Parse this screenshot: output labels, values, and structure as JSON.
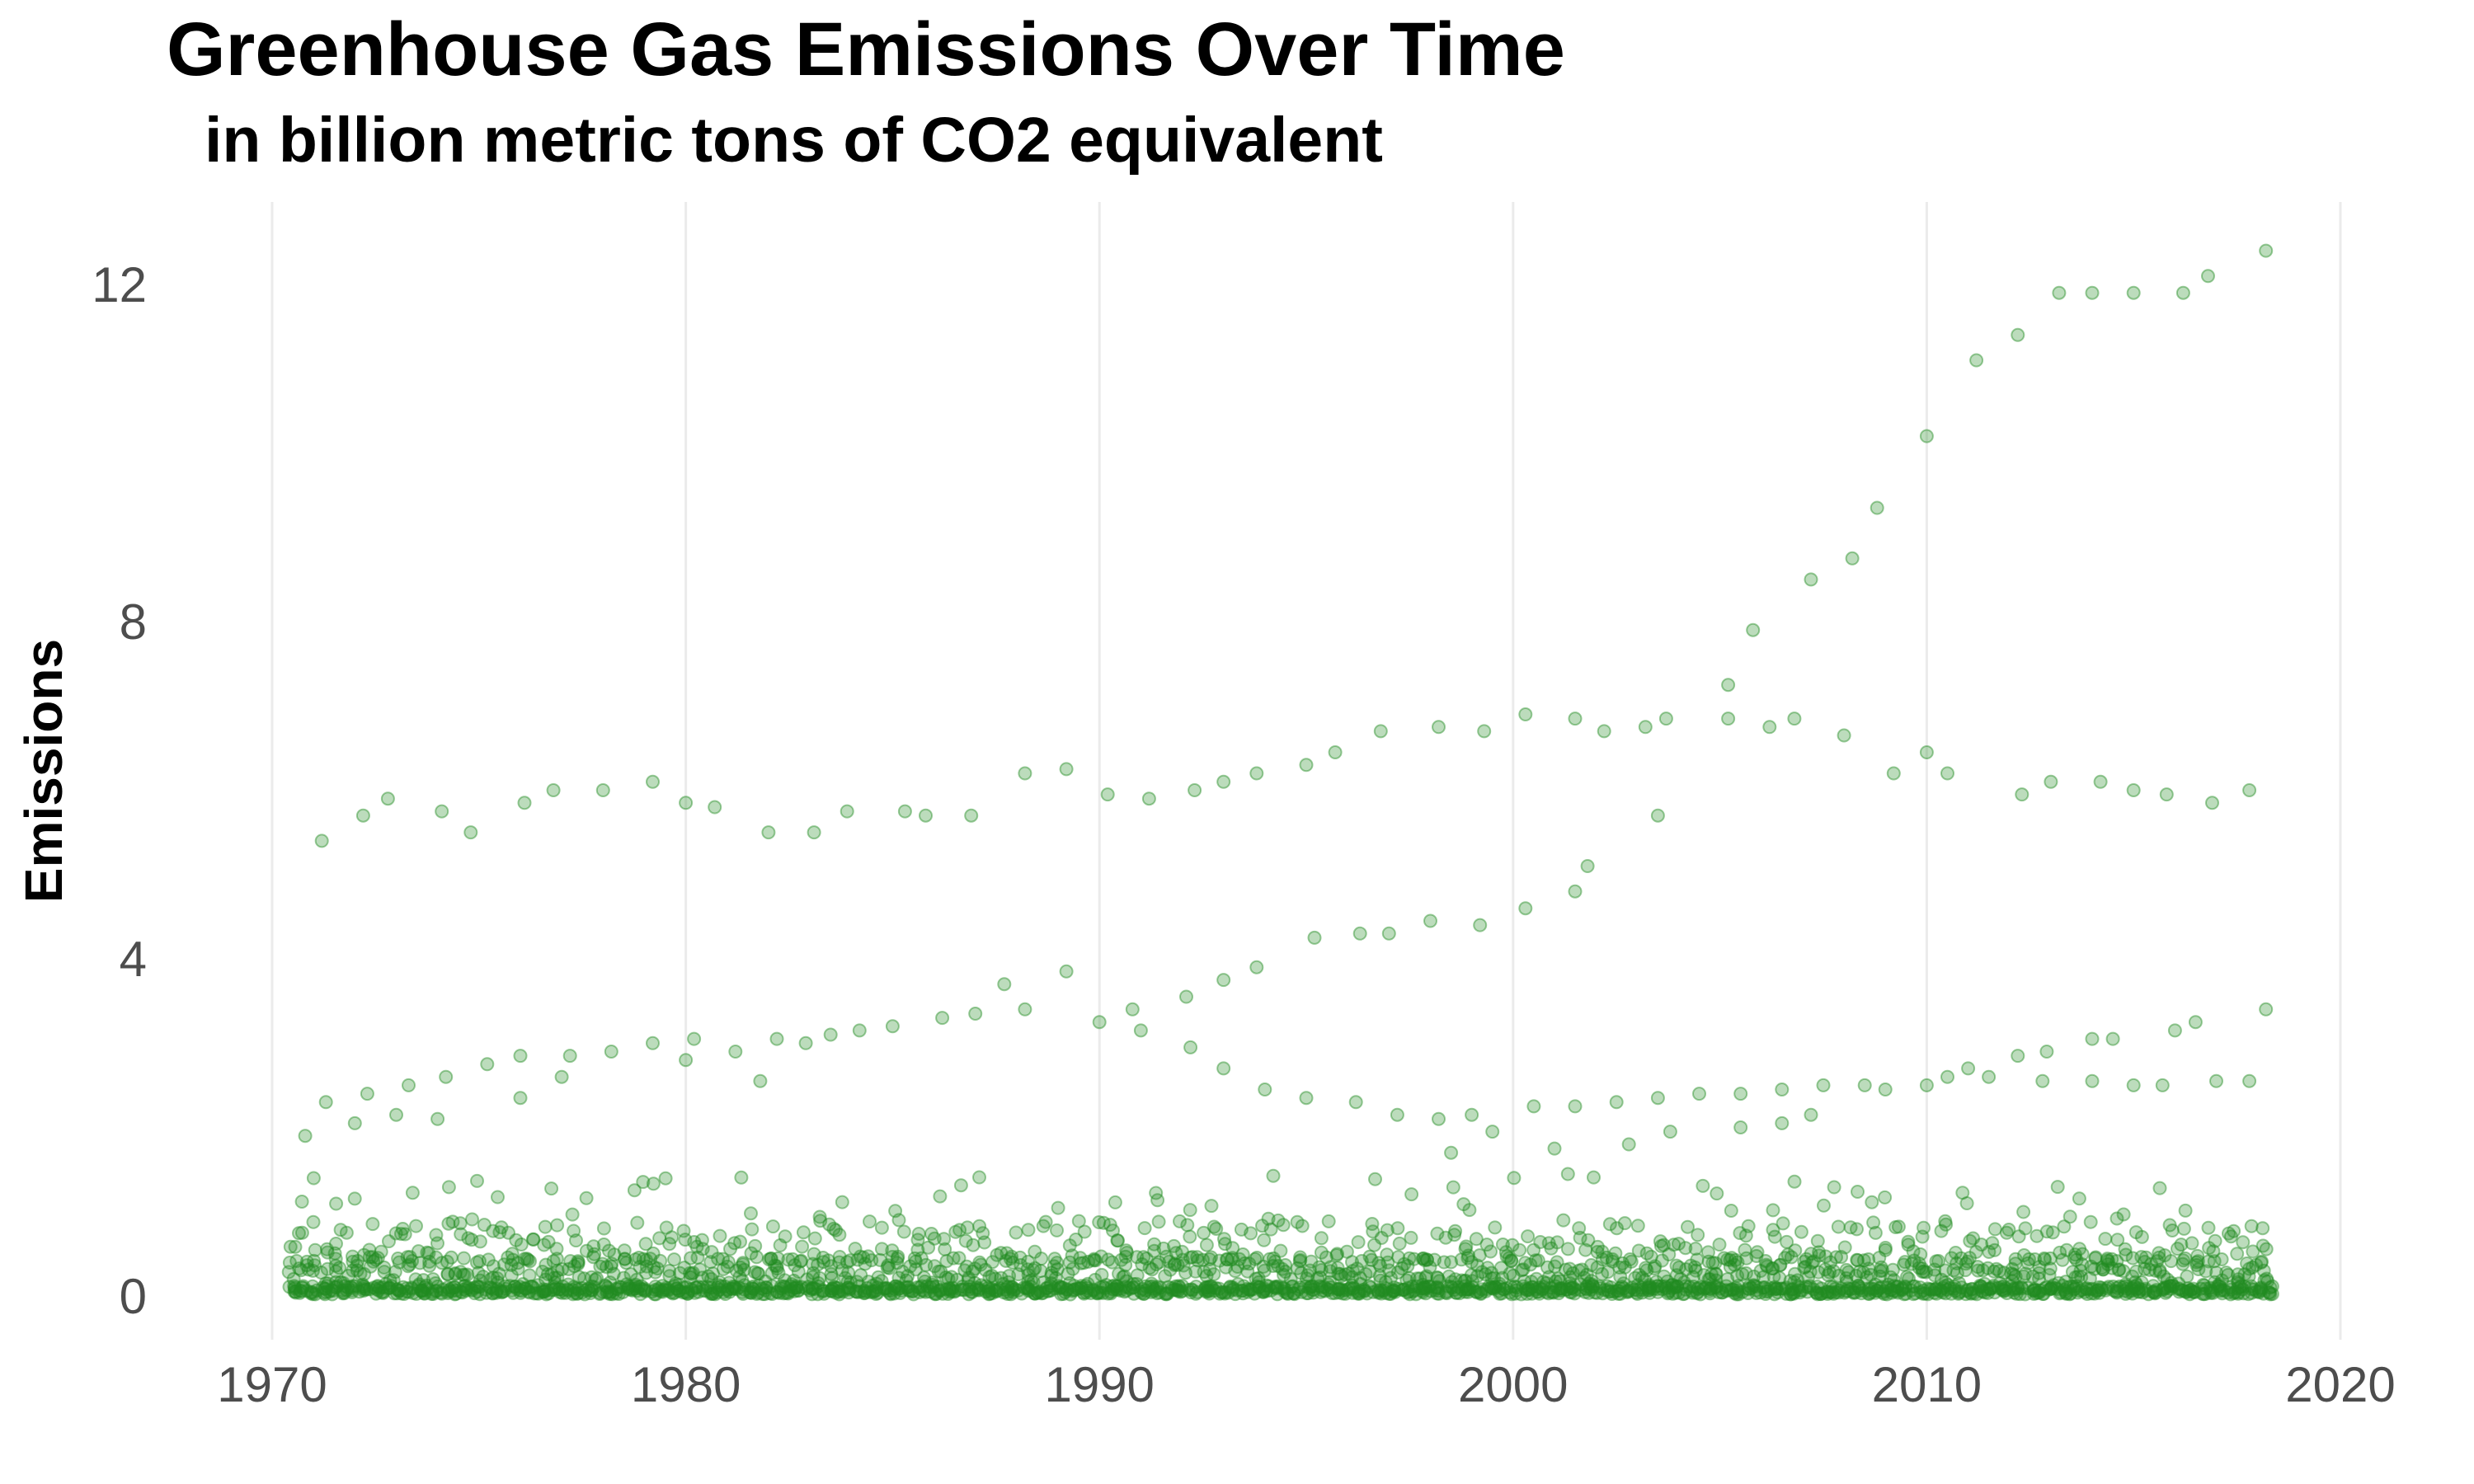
{
  "chart_data": {
    "type": "scatter",
    "title": "Greenhouse Gas Emissions Over Time",
    "subtitle": "in billion metric tons of CO2 equivalent",
    "xlabel": "",
    "ylabel": "Emissions",
    "xlim": [
      1970,
      2020
    ],
    "ylim": [
      -0.5,
      12.8
    ],
    "xticks": [
      1970,
      1980,
      1990,
      2000,
      2010,
      2020
    ],
    "xtick_labels": [
      "1970",
      "1980",
      "1990",
      "2000",
      "2010",
      "2020"
    ],
    "yticks": [
      0,
      4,
      8,
      12
    ],
    "ytick_labels": [
      "0",
      "4",
      "8",
      "12"
    ],
    "grid": "vertical major gridlines only",
    "legend": "none",
    "point_color": "#228b22",
    "point_alpha": 0.3,
    "series": [
      {
        "points": [
          [
            1971.2,
            5.4
          ],
          [
            1972.2,
            5.7
          ],
          [
            1972.8,
            5.9
          ],
          [
            1974.1,
            5.75
          ],
          [
            1974.8,
            5.5
          ],
          [
            1976.1,
            5.85
          ],
          [
            1976.8,
            6.0
          ],
          [
            1978.0,
            6.0
          ],
          [
            1979.2,
            6.1
          ],
          [
            1980.0,
            5.85
          ],
          [
            1980.7,
            5.8
          ],
          [
            1982.0,
            5.5
          ],
          [
            1983.1,
            5.5
          ],
          [
            1983.9,
            5.75
          ],
          [
            1985.3,
            5.75
          ],
          [
            1985.8,
            5.7
          ],
          [
            1986.9,
            5.7
          ],
          [
            1988.2,
            6.2
          ],
          [
            1989.2,
            6.25
          ],
          [
            1990.2,
            5.95
          ],
          [
            1991.2,
            5.9
          ],
          [
            1992.3,
            6.0
          ],
          [
            1993.0,
            6.1
          ],
          [
            1993.8,
            6.2
          ],
          [
            1995.0,
            6.3
          ],
          [
            1995.7,
            6.45
          ],
          [
            1996.8,
            6.7
          ],
          [
            1998.2,
            6.75
          ],
          [
            1999.3,
            6.7
          ],
          [
            2000.3,
            6.9
          ],
          [
            2001.5,
            6.85
          ],
          [
            2002.2,
            6.7
          ],
          [
            2003.2,
            6.75
          ],
          [
            2003.7,
            6.85
          ],
          [
            2005.2,
            6.85
          ],
          [
            2006.2,
            6.75
          ],
          [
            2006.8,
            6.85
          ],
          [
            2008.0,
            6.65
          ],
          [
            2009.2,
            6.2
          ],
          [
            2010.0,
            6.45
          ],
          [
            2010.5,
            6.2
          ],
          [
            2012.3,
            5.95
          ],
          [
            2013.0,
            6.1
          ],
          [
            2014.2,
            6.1
          ],
          [
            2015.0,
            6.0
          ],
          [
            2015.8,
            5.95
          ],
          [
            2016.9,
            5.85
          ],
          [
            2017.8,
            6.0
          ],
          [
            2003.5,
            5.7
          ],
          [
            2001.5,
            4.8
          ],
          [
            2001.8,
            5.1
          ],
          [
            2000.3,
            4.6
          ],
          [
            1999.2,
            4.4
          ],
          [
            1998.0,
            4.45
          ],
          [
            1997.0,
            4.3
          ],
          [
            1996.3,
            4.3
          ],
          [
            1995.2,
            4.25
          ],
          [
            1993.8,
            3.9
          ],
          [
            1993.0,
            3.75
          ],
          [
            1992.1,
            3.55
          ],
          [
            1990.8,
            3.4
          ],
          [
            1989.2,
            3.85
          ],
          [
            1988.2,
            3.4
          ],
          [
            1987.7,
            3.7
          ],
          [
            1987.0,
            3.35
          ],
          [
            1986.2,
            3.3
          ],
          [
            1985.0,
            3.2
          ],
          [
            1984.2,
            3.15
          ],
          [
            1983.5,
            3.1
          ],
          [
            1982.9,
            3.0
          ],
          [
            1982.2,
            3.05
          ],
          [
            1981.2,
            2.9
          ],
          [
            1980.2,
            3.05
          ],
          [
            1979.2,
            3.0
          ],
          [
            1978.2,
            2.9
          ],
          [
            1977.2,
            2.85
          ],
          [
            1976.0,
            2.85
          ],
          [
            1975.2,
            2.75
          ],
          [
            1974.2,
            2.6
          ],
          [
            1973.3,
            2.5
          ],
          [
            1972.3,
            2.4
          ],
          [
            1971.3,
            2.3
          ],
          [
            1970.8,
            1.9
          ],
          [
            1990.0,
            3.25
          ],
          [
            1991.0,
            3.15
          ],
          [
            1992.2,
            2.95
          ],
          [
            1993.0,
            2.7
          ],
          [
            1994.0,
            2.45
          ],
          [
            1995.0,
            2.35
          ],
          [
            1996.2,
            2.3
          ],
          [
            1997.2,
            2.15
          ],
          [
            1998.2,
            2.1
          ],
          [
            1999.0,
            2.15
          ],
          [
            2000.5,
            2.25
          ],
          [
            2001.5,
            2.25
          ],
          [
            2002.5,
            2.3
          ],
          [
            2003.5,
            2.35
          ],
          [
            2004.5,
            2.4
          ],
          [
            2005.5,
            2.4
          ],
          [
            2006.5,
            2.45
          ],
          [
            2007.5,
            2.5
          ],
          [
            2008.5,
            2.5
          ],
          [
            2009.0,
            2.45
          ],
          [
            2010.0,
            2.5
          ],
          [
            2010.5,
            2.6
          ],
          [
            2011.0,
            2.7
          ],
          [
            2011.5,
            2.6
          ],
          [
            2012.2,
            2.85
          ],
          [
            2012.9,
            2.9
          ],
          [
            2014.0,
            3.05
          ],
          [
            2014.5,
            3.05
          ],
          [
            2016.0,
            3.15
          ],
          [
            2016.5,
            3.25
          ],
          [
            2018.2,
            3.4
          ],
          [
            2012.8,
            2.55
          ],
          [
            2014.0,
            2.55
          ],
          [
            2015.0,
            2.5
          ],
          [
            2015.7,
            2.5
          ],
          [
            2017.0,
            2.55
          ],
          [
            2017.8,
            2.55
          ],
          [
            1981.8,
            2.55
          ],
          [
            1980.0,
            2.8
          ],
          [
            1974.0,
            2.1
          ],
          [
            1976.0,
            2.35
          ],
          [
            1977.0,
            2.6
          ],
          [
            1972.0,
            2.05
          ],
          [
            1973.0,
            2.15
          ],
          [
            1999.5,
            1.95
          ],
          [
            1998.5,
            1.7
          ],
          [
            2001.0,
            1.75
          ],
          [
            2002.8,
            1.8
          ],
          [
            2003.8,
            1.95
          ],
          [
            2005.5,
            2.0
          ],
          [
            2006.5,
            2.05
          ],
          [
            2007.2,
            2.15
          ],
          [
            2005.2,
            7.25
          ],
          [
            2005.8,
            7.9
          ],
          [
            2007.2,
            8.5
          ],
          [
            2008.2,
            8.75
          ],
          [
            2008.8,
            9.35
          ],
          [
            2010.0,
            10.2
          ],
          [
            2011.2,
            11.1
          ],
          [
            2012.2,
            11.4
          ],
          [
            2013.2,
            11.9
          ],
          [
            2014.0,
            11.9
          ],
          [
            2015.0,
            11.9
          ],
          [
            2016.2,
            11.9
          ],
          [
            2016.8,
            12.1
          ],
          [
            2018.2,
            12.4
          ]
        ]
      }
    ]
  }
}
